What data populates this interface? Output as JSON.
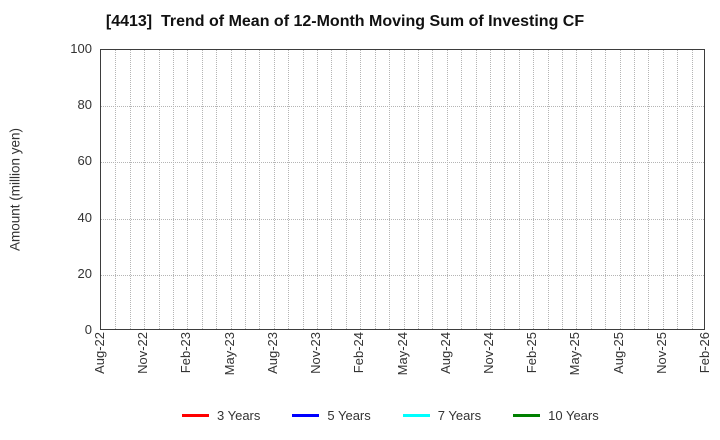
{
  "figure": {
    "background": "#ffffff",
    "title": "[4413]  Trend of Mean of 12-Month Moving Sum of Investing CF"
  },
  "y_axis": {
    "label": "Amount (million yen)",
    "tick_values": [
      0,
      20,
      40,
      60,
      80,
      100
    ],
    "grid_values": [
      20,
      40,
      60,
      80
    ],
    "min": 0,
    "max": 100
  },
  "x_axis": {
    "tick_labels": [
      "Aug-22",
      "Nov-22",
      "Feb-23",
      "May-23",
      "Aug-23",
      "Nov-23",
      "Feb-24",
      "May-24",
      "Aug-24",
      "Nov-24",
      "Feb-25",
      "May-25",
      "Aug-25",
      "Nov-25",
      "Feb-26"
    ],
    "months_per_labeled_tick": 3
  },
  "legend": {
    "items": [
      {
        "label": "3 Years",
        "color": "#ff0000"
      },
      {
        "label": "5 Years",
        "color": "#0000ff"
      },
      {
        "label": "7 Years",
        "color": "#00ffff"
      },
      {
        "label": "10 Years",
        "color": "#008000"
      }
    ]
  },
  "colors": {
    "grid": "#b5b5b5",
    "axis_border": "#3d3d3d",
    "tick_text": "#333333",
    "title_text": "#111111"
  },
  "chart_data": {
    "type": "line",
    "title": "[4413]  Trend of Mean of 12-Month Moving Sum of Investing CF",
    "xlabel": "",
    "ylabel": "Amount (million yen)",
    "ylim": [
      0,
      100
    ],
    "x_tick_labels": [
      "Aug-22",
      "Nov-22",
      "Feb-23",
      "May-23",
      "Aug-23",
      "Nov-23",
      "Feb-24",
      "May-24",
      "Aug-24",
      "Nov-24",
      "Feb-25",
      "May-25",
      "Aug-25",
      "Nov-25",
      "Feb-26"
    ],
    "grid": true,
    "grid_style": "dotted",
    "legend_position": "bottom",
    "series": [
      {
        "name": "3 Years",
        "color": "#ff0000",
        "values": []
      },
      {
        "name": "5 Years",
        "color": "#0000ff",
        "values": []
      },
      {
        "name": "7 Years",
        "color": "#00ffff",
        "values": []
      },
      {
        "name": "10 Years",
        "color": "#008000",
        "values": []
      }
    ]
  }
}
